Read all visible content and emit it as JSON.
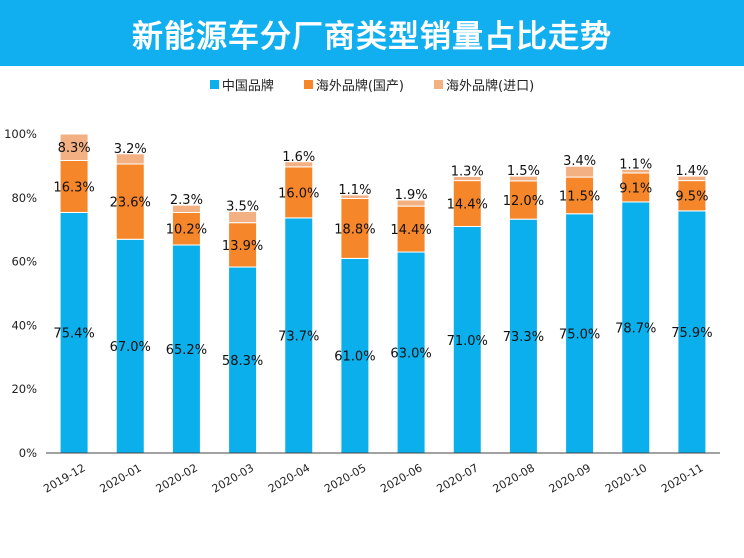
{
  "colors": {
    "title_bg": "#12aff0",
    "china": "#0aafeb",
    "overseas_domestic": "#f5862a",
    "overseas_import": "#f2b083"
  },
  "chart_data": {
    "type": "bar",
    "stacked": true,
    "title": "新能源车分厂商类型销量占比走势",
    "categories": [
      "2019-12",
      "2020-01",
      "2020-02",
      "2020-03",
      "2020-04",
      "2020-05",
      "2020-06",
      "2020-07",
      "2020-08",
      "2020-09",
      "2020-10",
      "2020-11"
    ],
    "series": [
      {
        "name": "中国品牌",
        "color": "#0aafeb",
        "values": [
          75.4,
          67.0,
          65.2,
          58.3,
          73.7,
          61.0,
          63.0,
          71.0,
          73.3,
          75.0,
          78.7,
          75.9
        ],
        "labels": [
          "75.4%",
          "67.0%",
          "65.2%",
          "58.3%",
          "73.7%",
          "61.0%",
          "63.0%",
          "71.0%",
          "73.3%",
          "75.0%",
          "78.7%",
          "75.9%"
        ]
      },
      {
        "name": "海外品牌(国产)",
        "color": "#f5862a",
        "values": [
          16.3,
          23.6,
          10.2,
          13.9,
          16.0,
          18.8,
          14.4,
          14.4,
          12.0,
          11.5,
          9.1,
          9.5
        ],
        "labels": [
          "16.3%",
          "23.6%",
          "10.2%",
          "13.9%",
          "16.0%",
          "18.8%",
          "14.4%",
          "14.4%",
          "12.0%",
          "11.5%",
          "9.1%",
          "9.5%"
        ]
      },
      {
        "name": "海外品牌(进口)",
        "color": "#f2b083",
        "values": [
          8.3,
          3.2,
          2.3,
          3.5,
          1.6,
          1.1,
          1.9,
          1.3,
          1.5,
          3.4,
          1.1,
          1.4
        ],
        "labels": [
          "8.3%",
          "3.2%",
          "2.3%",
          "3.5%",
          "1.6%",
          "1.1%",
          "1.9%",
          "1.3%",
          "1.5%",
          "3.4%",
          "1.1%",
          "1.4%"
        ]
      }
    ],
    "y_ticks": [
      0,
      20,
      40,
      60,
      80,
      100
    ],
    "y_tick_labels": [
      "0%",
      "20%",
      "40%",
      "60%",
      "80%",
      "100%"
    ],
    "ylim": [
      0,
      100
    ],
    "grid": false,
    "legend_position": "top-center"
  }
}
